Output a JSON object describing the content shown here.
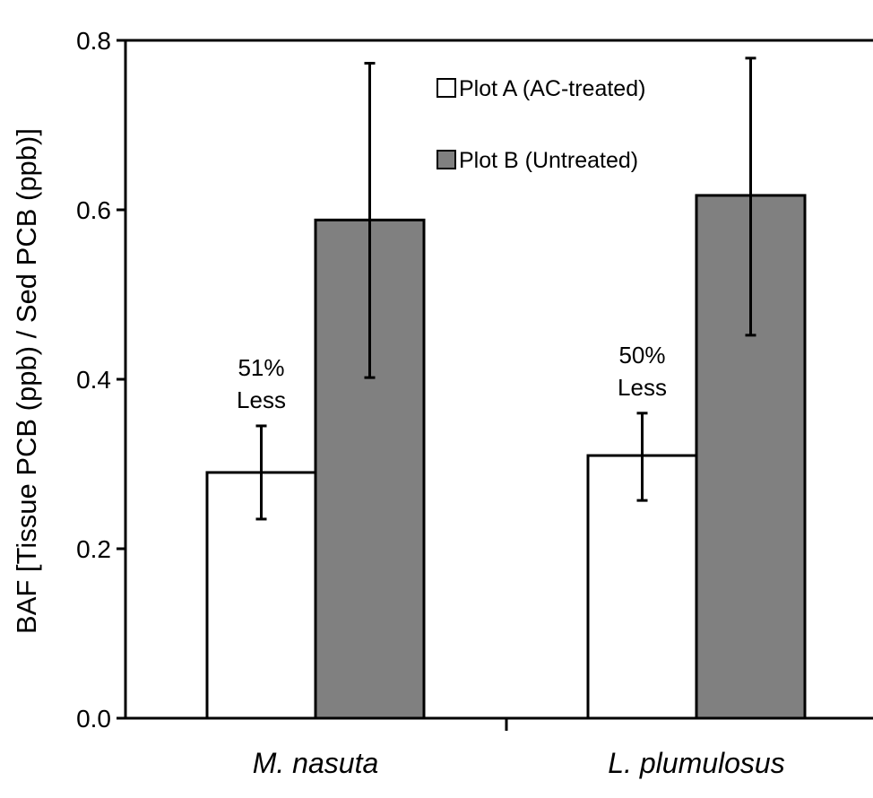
{
  "chart_data": {
    "type": "bar",
    "categories": [
      "M. nasuta",
      "L. plumulosus"
    ],
    "series": [
      {
        "name": "Plot A (AC-treated)",
        "color": "#ffffff",
        "values": [
          0.29,
          0.31
        ],
        "error_low": [
          0.235,
          0.257
        ],
        "error_high": [
          0.345,
          0.36
        ]
      },
      {
        "name": "Plot B (Untreated)",
        "color": "#808080",
        "values": [
          0.588,
          0.617
        ],
        "error_low": [
          0.402,
          0.452
        ],
        "error_high": [
          0.773,
          0.779
        ]
      }
    ],
    "annotations": [
      {
        "category_index": 0,
        "lines": [
          "51%",
          "Less"
        ]
      },
      {
        "category_index": 1,
        "lines": [
          "50%",
          "Less"
        ]
      }
    ],
    "ylabel": "BAF [Tissue PCB (ppb) / Sed PCB (ppb)]",
    "xlabel": "",
    "ylim": [
      0.0,
      0.8
    ],
    "yticks": [
      "0.0",
      "0.2",
      "0.4",
      "0.6",
      "0.8"
    ],
    "grid": false,
    "legend_position": "top-center"
  }
}
